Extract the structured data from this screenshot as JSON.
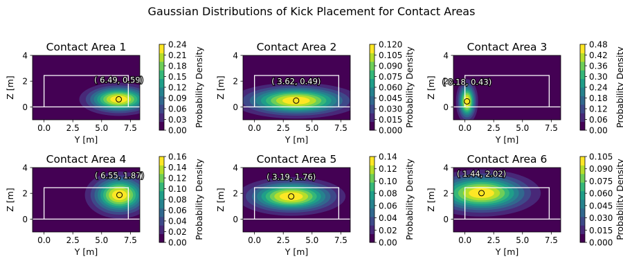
{
  "figure": {
    "title": "Gaussian Distributions of Kick Placement for Contact Areas"
  },
  "colors": {
    "viridis": [
      "#440154",
      "#482878",
      "#3e4989",
      "#31688e",
      "#26828e",
      "#1f9e89",
      "#35b779",
      "#6ece58",
      "#b5de2b",
      "#fde725"
    ],
    "goal": "#ffffff",
    "marker_face": "#fde725",
    "marker_edge": "#000000"
  },
  "chart_data": [
    {
      "type": "heatmap",
      "title": "Contact Area 1",
      "xlabel": "Y [m]",
      "ylabel": "Z [m]",
      "xlim": [
        -1,
        8.32
      ],
      "ylim": [
        -1,
        4
      ],
      "xticks": [
        "0.0",
        "2.5",
        "5.0",
        "7.5"
      ],
      "xtick_values": [
        0,
        2.5,
        5,
        7.5
      ],
      "yticks": [
        "0",
        "2",
        "4"
      ],
      "ytick_values": [
        0,
        2,
        4
      ],
      "mean": [
        6.49,
        0.59
      ],
      "sigma": [
        1.6,
        0.6
      ],
      "annotation": "( 6.49,  0.59)",
      "colorbar_label": "Probability Density",
      "colorbar_ticks": [
        "0.00",
        "0.03",
        "0.06",
        "0.09",
        "0.12",
        "0.15",
        "0.18",
        "0.21",
        "0.24"
      ]
    },
    {
      "type": "heatmap",
      "title": "Contact Area 2",
      "xlabel": "Y [m]",
      "ylabel": "Z [m]",
      "xlim": [
        -1,
        8.32
      ],
      "ylim": [
        -1,
        4
      ],
      "xticks": [
        "0.0",
        "2.5",
        "5.0",
        "7.5"
      ],
      "xtick_values": [
        0,
        2.5,
        5,
        7.5
      ],
      "yticks": [
        "0",
        "2",
        "4"
      ],
      "ytick_values": [
        0,
        2,
        4
      ],
      "mean": [
        3.62,
        0.49
      ],
      "sigma": [
        2.6,
        0.65
      ],
      "annotation": "( 3.62,  0.49)",
      "colorbar_label": "Probability Density",
      "colorbar_ticks": [
        "0.000",
        "0.015",
        "0.030",
        "0.045",
        "0.060",
        "0.075",
        "0.090",
        "0.105",
        "0.120"
      ]
    },
    {
      "type": "heatmap",
      "title": "Contact Area 3",
      "xlabel": "Y [m]",
      "ylabel": "Z [m]",
      "xlim": [
        -1,
        8.32
      ],
      "ylim": [
        -1,
        4
      ],
      "xticks": [
        "0.0",
        "2.5",
        "5.0",
        "7.5"
      ],
      "xtick_values": [
        0,
        2.5,
        5,
        7.5
      ],
      "yticks": [
        "0",
        "2",
        "4"
      ],
      "ytick_values": [
        0,
        2,
        4
      ],
      "mean": [
        0.18,
        0.43
      ],
      "sigma": [
        0.45,
        0.8
      ],
      "annotation": "( 0.18,  0.43)",
      "colorbar_label": "Probability Density",
      "colorbar_ticks": [
        "0.00",
        "0.06",
        "0.12",
        "0.18",
        "0.24",
        "0.30",
        "0.36",
        "0.42",
        "0.48"
      ]
    },
    {
      "type": "heatmap",
      "title": "Contact Area 4",
      "xlabel": "Y [m]",
      "ylabel": "Z [m]",
      "xlim": [
        -1,
        8.32
      ],
      "ylim": [
        -1,
        4
      ],
      "xticks": [
        "0.0",
        "2.5",
        "5.0",
        "7.5"
      ],
      "xtick_values": [
        0,
        2.5,
        5,
        7.5
      ],
      "yticks": [
        "0",
        "2",
        "4"
      ],
      "ytick_values": [
        0,
        2,
        4
      ],
      "mean": [
        6.55,
        1.87
      ],
      "sigma": [
        1.4,
        0.85
      ],
      "annotation": "( 6.55,  1.87)",
      "colorbar_label": "Probability Density",
      "colorbar_ticks": [
        "0.00",
        "0.02",
        "0.04",
        "0.06",
        "0.08",
        "0.10",
        "0.12",
        "0.14",
        "0.16"
      ]
    },
    {
      "type": "heatmap",
      "title": "Contact Area 5",
      "xlabel": "Y [m]",
      "ylabel": "Z [m]",
      "xlim": [
        -1,
        8.32
      ],
      "ylim": [
        -1,
        4
      ],
      "xticks": [
        "0.0",
        "2.5",
        "5.0",
        "7.5"
      ],
      "xtick_values": [
        0,
        2.5,
        5,
        7.5
      ],
      "yticks": [
        "0",
        "2",
        "4"
      ],
      "ytick_values": [
        0,
        2,
        4
      ],
      "mean": [
        3.19,
        1.76
      ],
      "sigma": [
        2.2,
        0.7
      ],
      "annotation": "( 3.19,  1.76)",
      "colorbar_label": "Probability Density",
      "colorbar_ticks": [
        "0.00",
        "0.02",
        "0.04",
        "0.06",
        "0.08",
        "0.10",
        "0.12",
        "0.14"
      ]
    },
    {
      "type": "heatmap",
      "title": "Contact Area 6",
      "xlabel": "Y [m]",
      "ylabel": "Z [m]",
      "xlim": [
        -1,
        8.32
      ],
      "ylim": [
        -1,
        4
      ],
      "xticks": [
        "0.0",
        "2.5",
        "5.0",
        "7.5"
      ],
      "xtick_values": [
        0,
        2.5,
        5,
        7.5
      ],
      "yticks": [
        "0",
        "2",
        "4"
      ],
      "ytick_values": [
        0,
        2,
        4
      ],
      "mean": [
        1.44,
        2.02
      ],
      "sigma": [
        2.4,
        0.85
      ],
      "annotation": "( 1.44,  2.02)",
      "colorbar_label": "Probability Density",
      "colorbar_ticks": [
        "0.000",
        "0.015",
        "0.030",
        "0.045",
        "0.060",
        "0.075",
        "0.090",
        "0.105"
      ]
    }
  ],
  "goal": {
    "y_range": [
      0,
      7.32
    ],
    "z_range": [
      0,
      2.44
    ],
    "ground_z": 0
  }
}
